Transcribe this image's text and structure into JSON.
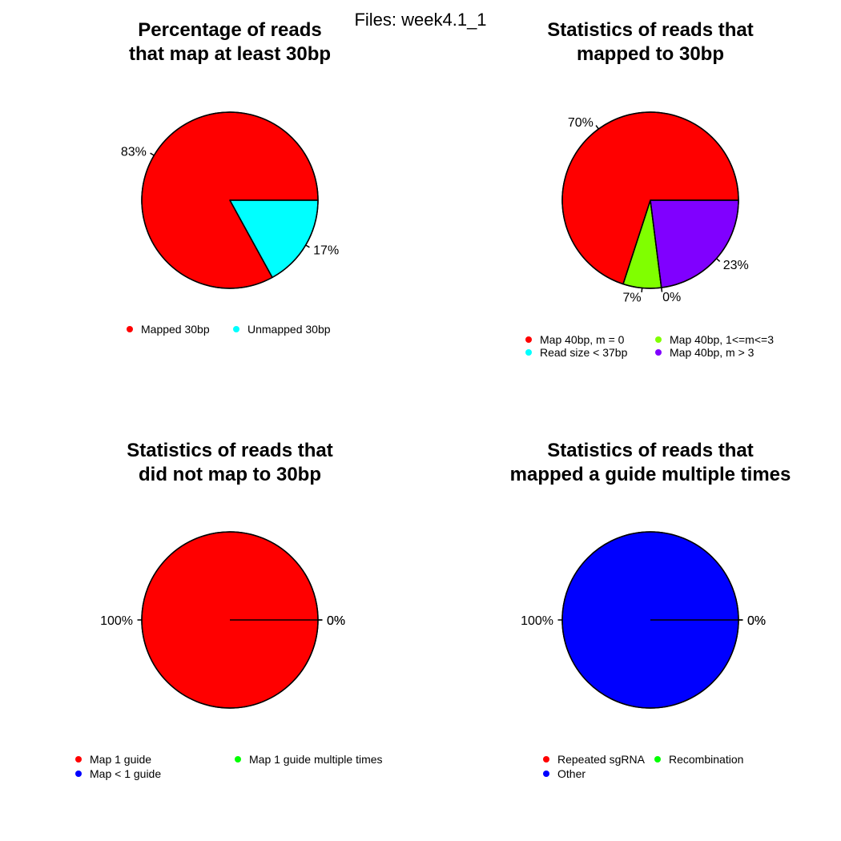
{
  "suptitle": "Files: week4.1_1",
  "chart_data": [
    {
      "type": "pie",
      "title": [
        "Percentage of reads",
        "that map at least 30bp"
      ],
      "slices": [
        {
          "name": "Mapped 30bp",
          "value": 83,
          "label": "83%",
          "color": "#FF0000"
        },
        {
          "name": "Unmapped 30bp",
          "value": 17,
          "label": "17%",
          "color": "#00FFFF"
        }
      ],
      "legend": {
        "columns": 2
      }
    },
    {
      "type": "pie",
      "title": [
        "Statistics of reads that",
        "mapped to 30bp"
      ],
      "slices": [
        {
          "name": "Map 40bp, m = 0",
          "value": 70,
          "label": "70%",
          "color": "#FF0000"
        },
        {
          "name": "Map 40bp, 1<=m<=3",
          "value": 7,
          "label": "7%",
          "color": "#80FF00"
        },
        {
          "name": "Read size < 37bp",
          "value": 0,
          "label": "0%",
          "color": "#00FFFF"
        },
        {
          "name": "Map 40bp, m > 3",
          "value": 23,
          "label": "23%",
          "color": "#8000FF"
        }
      ],
      "legend": {
        "columns": 2,
        "order": [
          0,
          2,
          1,
          3
        ]
      }
    },
    {
      "type": "pie",
      "title": [
        "Statistics of reads that",
        "did not map to 30bp"
      ],
      "slices": [
        {
          "name": "Map 1 guide",
          "value": 100,
          "label": "100%",
          "color": "#FF0000"
        },
        {
          "name": "Map 1 guide multiple times",
          "value": 0,
          "label": "0%",
          "color": "#00FF00"
        },
        {
          "name": "Map < 1 guide",
          "value": 0,
          "label": "0%",
          "color": "#0000FF"
        }
      ],
      "legend": {
        "columns": 2,
        "order": [
          0,
          2,
          1
        ]
      }
    },
    {
      "type": "pie",
      "title": [
        "Statistics of reads that",
        "mapped a guide multiple times"
      ],
      "slices": [
        {
          "name": "Repeated sgRNA",
          "value": 0,
          "label": "0%",
          "color": "#FF0000"
        },
        {
          "name": "Recombination",
          "value": 0,
          "label": "0%",
          "color": "#00FF00"
        },
        {
          "name": "Other",
          "value": 100,
          "label": "100%",
          "color": "#0000FF"
        }
      ],
      "legend": {
        "columns": 2,
        "order": [
          0,
          2,
          1
        ]
      }
    }
  ]
}
